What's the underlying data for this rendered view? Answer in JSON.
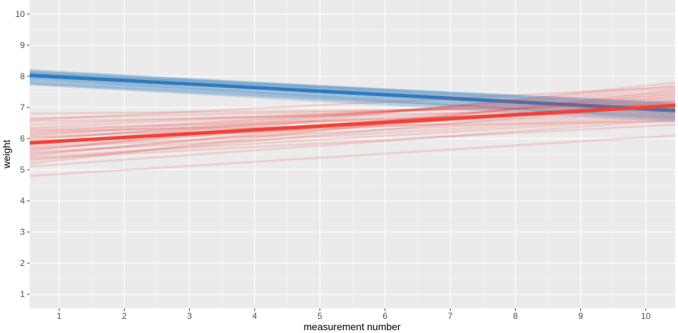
{
  "chart_data": {
    "type": "line",
    "title": "",
    "xlabel": "measurement number",
    "ylabel": "weight",
    "xlim": [
      0.55,
      10.45
    ],
    "ylim": [
      0.55,
      10.45
    ],
    "x_ticks": [
      1,
      2,
      3,
      4,
      5,
      6,
      7,
      8,
      9,
      10
    ],
    "y_ticks": [
      1,
      2,
      3,
      4,
      5,
      6,
      7,
      8,
      9,
      10
    ],
    "grid": true,
    "legend": "none",
    "series": [
      {
        "color": "#2e7bbf",
        "x": [
          0.55,
          10.45
        ],
        "mean_line": [
          8.03,
          6.9
        ],
        "uncertainty_lines": [
          [
            8.2,
            7.02
          ],
          [
            8.15,
            6.98
          ],
          [
            8.12,
            7.05
          ],
          [
            8.1,
            6.95
          ],
          [
            8.08,
            7.0
          ],
          [
            8.06,
            6.88
          ],
          [
            8.04,
            6.95
          ],
          [
            8.02,
            6.85
          ],
          [
            8.0,
            6.92
          ],
          [
            7.98,
            6.8
          ],
          [
            7.96,
            6.86
          ],
          [
            7.93,
            6.75
          ],
          [
            7.9,
            6.82
          ],
          [
            7.88,
            6.7
          ],
          [
            7.85,
            6.78
          ],
          [
            7.83,
            6.65
          ],
          [
            7.8,
            6.72
          ],
          [
            7.78,
            6.6
          ],
          [
            7.76,
            6.68
          ],
          [
            7.74,
            6.55
          ],
          [
            8.18,
            7.1
          ],
          [
            8.14,
            7.12
          ],
          [
            8.09,
            7.15
          ],
          [
            8.05,
            7.08
          ],
          [
            7.95,
            6.62
          ]
        ]
      },
      {
        "color": "#f0433a",
        "x": [
          0.55,
          10.45
        ],
        "mean_line": [
          5.86,
          7.06
        ],
        "uncertainty_lines": [
          [
            6.8,
            7.0
          ],
          [
            6.65,
            7.1
          ],
          [
            6.55,
            6.95
          ],
          [
            6.45,
            7.2
          ],
          [
            6.35,
            7.3
          ],
          [
            6.3,
            6.9
          ],
          [
            6.2,
            7.4
          ],
          [
            6.15,
            7.0
          ],
          [
            6.1,
            7.5
          ],
          [
            6.05,
            6.85
          ],
          [
            6.0,
            7.25
          ],
          [
            5.95,
            7.6
          ],
          [
            5.9,
            6.8
          ],
          [
            5.85,
            7.15
          ],
          [
            5.8,
            7.7
          ],
          [
            5.75,
            7.05
          ],
          [
            5.7,
            6.75
          ],
          [
            5.65,
            7.35
          ],
          [
            5.6,
            7.8
          ],
          [
            5.55,
            6.7
          ],
          [
            5.5,
            7.2
          ],
          [
            5.45,
            7.45
          ],
          [
            5.4,
            6.65
          ],
          [
            5.3,
            7.1
          ],
          [
            5.2,
            7.55
          ],
          [
            5.1,
            6.6
          ],
          [
            4.8,
            6.1
          ],
          [
            6.25,
            6.55
          ],
          [
            5.35,
            6.45
          ],
          [
            6.6,
            7.65
          ]
        ]
      }
    ]
  }
}
